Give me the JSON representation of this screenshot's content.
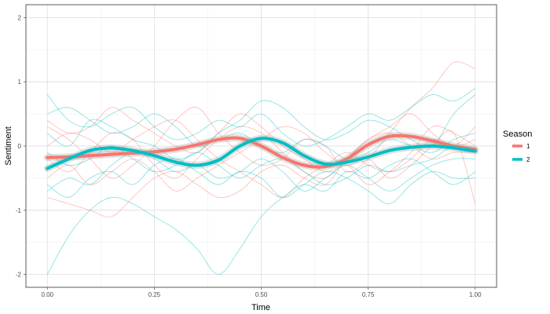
{
  "chart_data": {
    "type": "line",
    "xlabel": "Time",
    "ylabel": "Sentiment",
    "xlim": [
      -0.05,
      1.05
    ],
    "ylim": [
      -2.2,
      2.2
    ],
    "x_ticks": [
      "0.00",
      "0.25",
      "0.50",
      "0.75",
      "1.00"
    ],
    "x_tick_values": [
      0,
      0.25,
      0.5,
      0.75,
      1.0
    ],
    "y_ticks": [
      "-2",
      "-1",
      "0",
      "1",
      "2"
    ],
    "y_tick_values": [
      -2,
      -1,
      0,
      1,
      2
    ],
    "grid": true,
    "legend": {
      "title": "Season",
      "position": "right",
      "entries": [
        {
          "label": "1",
          "color": "#F8766D"
        },
        {
          "label": "2",
          "color": "#00BFC4"
        }
      ]
    },
    "x": [
      0.0,
      0.05,
      0.1,
      0.15,
      0.2,
      0.25,
      0.3,
      0.35,
      0.4,
      0.45,
      0.5,
      0.55,
      0.6,
      0.65,
      0.7,
      0.75,
      0.8,
      0.85,
      0.9,
      0.95,
      1.0
    ],
    "series": [
      {
        "name": "1",
        "color": "#F8766D",
        "kind": "smooth",
        "values": [
          -0.18,
          -0.17,
          -0.15,
          -0.13,
          -0.11,
          -0.09,
          -0.05,
          0.02,
          0.1,
          0.12,
          0.0,
          -0.18,
          -0.3,
          -0.32,
          -0.2,
          0.02,
          0.15,
          0.15,
          0.08,
          0.0,
          -0.05
        ]
      },
      {
        "name": "2",
        "color": "#00BFC4",
        "kind": "smooth",
        "values": [
          -0.35,
          -0.2,
          -0.07,
          -0.03,
          -0.07,
          -0.15,
          -0.25,
          -0.3,
          -0.22,
          0.0,
          0.12,
          0.05,
          -0.15,
          -0.28,
          -0.25,
          -0.17,
          -0.07,
          -0.02,
          0.0,
          -0.03,
          -0.08
        ]
      },
      {
        "name": "1",
        "color": "#F8766D",
        "kind": "raw",
        "values": [
          -0.2,
          -0.4,
          -0.1,
          0.2,
          0.1,
          -0.3,
          -0.5,
          -0.2,
          0.1,
          0.3,
          0.2,
          -0.1,
          -0.4,
          -0.5,
          -0.2,
          0.1,
          0.3,
          0.5,
          0.2,
          0.0,
          0.1
        ]
      },
      {
        "name": "1",
        "color": "#F8766D",
        "kind": "raw",
        "values": [
          0.3,
          0.1,
          -0.2,
          -0.5,
          -0.3,
          0.0,
          0.4,
          0.6,
          0.2,
          -0.1,
          -0.3,
          -0.2,
          0.1,
          0.0,
          -0.4,
          -0.2,
          0.2,
          0.6,
          0.9,
          1.3,
          1.2
        ]
      },
      {
        "name": "1",
        "color": "#F8766D",
        "kind": "raw",
        "values": [
          -0.8,
          -0.9,
          -1.0,
          -1.1,
          -0.8,
          -0.5,
          -0.4,
          -0.6,
          -0.8,
          -0.7,
          -0.4,
          -0.3,
          -0.5,
          -0.6,
          -0.2,
          0.1,
          0.2,
          0.0,
          -0.2,
          -0.1,
          -0.1
        ]
      },
      {
        "name": "1",
        "color": "#F8766D",
        "kind": "raw",
        "values": [
          0.4,
          0.2,
          0.3,
          0.6,
          0.4,
          0.2,
          0.0,
          -0.1,
          0.2,
          0.5,
          0.3,
          0.0,
          -0.2,
          -0.4,
          -0.3,
          -0.6,
          -0.4,
          -0.1,
          0.3,
          0.2,
          0.0
        ]
      },
      {
        "name": "1",
        "color": "#F8766D",
        "kind": "raw",
        "values": [
          -0.5,
          -0.3,
          -0.6,
          -0.4,
          -0.2,
          -0.4,
          -0.7,
          -0.5,
          -0.3,
          -0.1,
          0.1,
          0.3,
          0.2,
          -0.1,
          -0.3,
          -0.2,
          -0.5,
          -0.3,
          0.0,
          0.2,
          -0.9
        ]
      },
      {
        "name": "1",
        "color": "#F8766D",
        "kind": "raw",
        "values": [
          0.0,
          0.2,
          0.1,
          -0.1,
          0.1,
          0.3,
          0.4,
          0.1,
          -0.2,
          -0.4,
          -0.6,
          -0.8,
          -0.5,
          -0.3,
          -0.1,
          -0.3,
          -0.4,
          -0.2,
          0.1,
          0.0,
          0.3
        ]
      },
      {
        "name": "2",
        "color": "#00BFC4",
        "kind": "raw",
        "values": [
          -2.0,
          -1.4,
          -1.0,
          -0.8,
          -0.9,
          -1.1,
          -1.3,
          -1.6,
          -2.0,
          -1.6,
          -1.1,
          -0.8,
          -0.6,
          -0.7,
          -0.4,
          -0.5,
          -0.3,
          -0.2,
          -0.4,
          -0.6,
          -0.4
        ]
      },
      {
        "name": "2",
        "color": "#00BFC4",
        "kind": "raw",
        "values": [
          0.8,
          0.4,
          0.3,
          0.5,
          0.6,
          0.3,
          0.1,
          0.2,
          0.4,
          0.3,
          0.5,
          0.2,
          0.0,
          0.1,
          0.3,
          0.5,
          0.4,
          0.6,
          0.8,
          0.7,
          0.9
        ]
      },
      {
        "name": "2",
        "color": "#00BFC4",
        "kind": "raw",
        "values": [
          -0.7,
          -0.5,
          -0.6,
          -0.3,
          -0.1,
          -0.2,
          -0.4,
          -0.3,
          -0.5,
          -0.4,
          -0.2,
          -0.4,
          -0.7,
          -0.5,
          -0.3,
          -0.5,
          -0.7,
          -0.5,
          -0.3,
          -0.2,
          -0.2
        ]
      },
      {
        "name": "2",
        "color": "#00BFC4",
        "kind": "raw",
        "values": [
          0.5,
          0.6,
          0.4,
          0.2,
          0.3,
          0.5,
          0.3,
          0.0,
          0.1,
          0.2,
          0.0,
          -0.1,
          0.1,
          0.0,
          -0.2,
          -0.1,
          0.1,
          0.0,
          -0.1,
          0.1,
          0.2
        ]
      },
      {
        "name": "2",
        "color": "#00BFC4",
        "kind": "raw",
        "values": [
          -0.1,
          -0.3,
          -0.2,
          0.0,
          -0.2,
          -0.4,
          -0.3,
          -0.1,
          -0.3,
          -0.5,
          -0.3,
          -0.2,
          -0.4,
          -0.6,
          -0.5,
          -0.3,
          -0.4,
          -0.3,
          -0.2,
          0.0,
          -0.1
        ]
      },
      {
        "name": "2",
        "color": "#00BFC4",
        "kind": "raw",
        "values": [
          0.2,
          0.0,
          0.4,
          0.3,
          0.1,
          0.0,
          -0.2,
          -0.1,
          0.2,
          0.4,
          0.7,
          0.6,
          0.3,
          0.1,
          0.2,
          0.4,
          0.3,
          0.1,
          0.0,
          0.5,
          0.8
        ]
      },
      {
        "name": "2",
        "color": "#00BFC4",
        "kind": "raw",
        "values": [
          -0.6,
          -0.8,
          -0.5,
          -0.4,
          -0.6,
          -0.3,
          -0.2,
          -0.4,
          -0.6,
          -0.4,
          -0.5,
          -0.8,
          -0.6,
          -0.4,
          -0.5,
          -0.7,
          -0.9,
          -0.6,
          -0.4,
          -0.5,
          -0.5
        ]
      }
    ]
  }
}
